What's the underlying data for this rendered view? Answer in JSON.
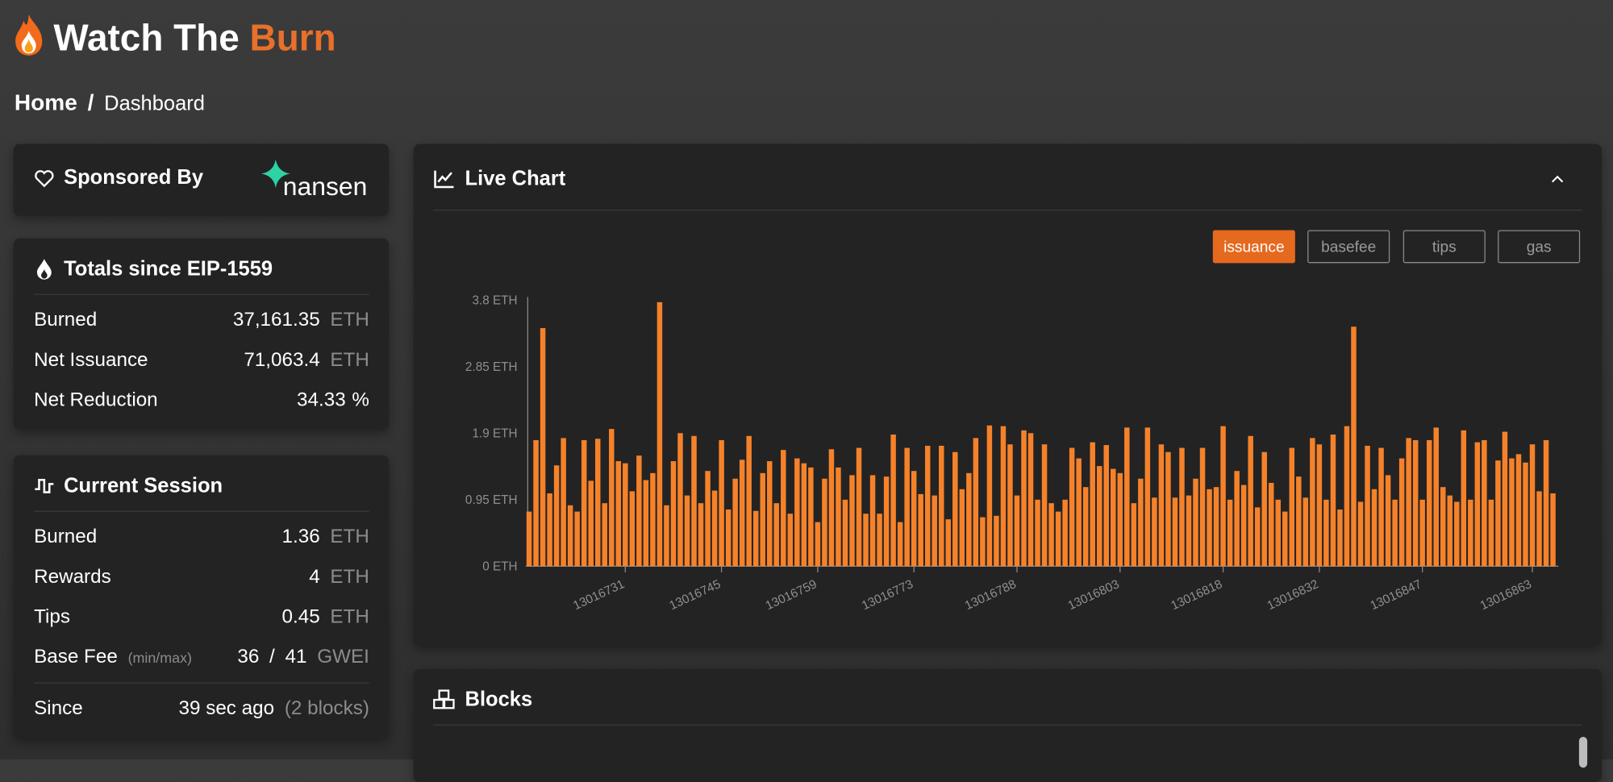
{
  "header": {
    "title": "Watch The",
    "title_accent": "Burn"
  },
  "breadcrumb": {
    "home": "Home",
    "separator": "/",
    "current": "Dashboard"
  },
  "sponsor": {
    "title": "Sponsored By",
    "logo_text": "nansen"
  },
  "totals": {
    "title": "Totals since EIP-1559",
    "rows": [
      {
        "label": "Burned",
        "value": "37,161.35",
        "unit": "ETH"
      },
      {
        "label": "Net Issuance",
        "value": "71,063.4",
        "unit": "ETH"
      },
      {
        "label": "Net Reduction",
        "value": "34.33",
        "unit": "%"
      }
    ]
  },
  "session": {
    "title": "Current Session",
    "rows": [
      {
        "label": "Burned",
        "value": "1.36",
        "unit": "ETH"
      },
      {
        "label": "Rewards",
        "value": "4",
        "unit": "ETH"
      },
      {
        "label": "Tips",
        "value": "0.45",
        "unit": "ETH"
      }
    ],
    "base_fee": {
      "label": "Base Fee",
      "note": "(min/max)",
      "min": "36",
      "separator": "/",
      "max": "41",
      "unit": "GWEI"
    },
    "since": {
      "label": "Since",
      "value": "39 sec ago",
      "note": "(2 blocks)"
    }
  },
  "live_chart": {
    "title": "Live Chart",
    "toggles": [
      "issuance",
      "basefee",
      "tips",
      "gas"
    ],
    "active": 0
  },
  "blocks": {
    "title": "Blocks"
  },
  "chart_data": {
    "type": "bar",
    "color": "#f5822a",
    "x": [
      13016717,
      13016718,
      13016719,
      13016720,
      13016721,
      13016722,
      13016723,
      13016724,
      13016725,
      13016726,
      13016727,
      13016728,
      13016729,
      13016730,
      13016731,
      13016732,
      13016733,
      13016734,
      13016735,
      13016736,
      13016737,
      13016738,
      13016739,
      13016740,
      13016741,
      13016742,
      13016743,
      13016744,
      13016745,
      13016746,
      13016747,
      13016748,
      13016749,
      13016750,
      13016751,
      13016752,
      13016753,
      13016754,
      13016755,
      13016756,
      13016757,
      13016758,
      13016759,
      13016760,
      13016761,
      13016762,
      13016763,
      13016764,
      13016765,
      13016766,
      13016767,
      13016768,
      13016769,
      13016770,
      13016771,
      13016772,
      13016773,
      13016774,
      13016775,
      13016776,
      13016777,
      13016778,
      13016779,
      13016780,
      13016781,
      13016782,
      13016783,
      13016784,
      13016785,
      13016786,
      13016787,
      13016788,
      13016789,
      13016790,
      13016791,
      13016792,
      13016793,
      13016794,
      13016795,
      13016796,
      13016797,
      13016798,
      13016799,
      13016800,
      13016801,
      13016802,
      13016803,
      13016804,
      13016805,
      13016806,
      13016807,
      13016808,
      13016809,
      13016810,
      13016811,
      13016812,
      13016813,
      13016814,
      13016815,
      13016816,
      13016817,
      13016818,
      13016819,
      13016820,
      13016821,
      13016822,
      13016823,
      13016824,
      13016825,
      13016826,
      13016827,
      13016828,
      13016829,
      13016830,
      13016831,
      13016832,
      13016833,
      13016834,
      13016835,
      13016836,
      13016837,
      13016838,
      13016839,
      13016840,
      13016841,
      13016842,
      13016843,
      13016844,
      13016845,
      13016846,
      13016847,
      13016848,
      13016849,
      13016850,
      13016851,
      13016852,
      13016853,
      13016854,
      13016855,
      13016856,
      13016857,
      13016858,
      13016859,
      13016860,
      13016861,
      13016862,
      13016863,
      13016864,
      13016865,
      13016866
    ],
    "values": [
      0.78,
      1.8,
      3.4,
      1.04,
      1.44,
      1.83,
      0.87,
      0.78,
      1.8,
      1.22,
      1.82,
      0.9,
      1.96,
      1.5,
      1.47,
      1.07,
      1.58,
      1.23,
      1.33,
      3.77,
      0.87,
      1.5,
      1.9,
      1.01,
      1.86,
      0.9,
      1.36,
      1.08,
      1.8,
      0.81,
      1.25,
      1.52,
      1.86,
      0.79,
      1.33,
      1.5,
      0.9,
      1.66,
      0.75,
      1.54,
      1.47,
      1.41,
      0.63,
      1.25,
      1.67,
      1.41,
      0.95,
      1.3,
      1.69,
      0.75,
      1.3,
      0.75,
      1.28,
      1.88,
      0.63,
      1.69,
      1.36,
      1.03,
      1.72,
      1.01,
      1.72,
      0.67,
      1.63,
      1.1,
      1.33,
      1.83,
      0.7,
      2.01,
      0.72,
      2.0,
      1.74,
      1.01,
      1.94,
      1.9,
      0.95,
      1.74,
      0.9,
      0.78,
      0.95,
      1.69,
      1.54,
      1.13,
      1.77,
      1.43,
      1.73,
      1.39,
      1.33,
      1.98,
      0.9,
      1.25,
      1.98,
      0.98,
      1.74,
      1.63,
      0.98,
      1.69,
      1.01,
      1.25,
      1.69,
      1.1,
      1.13,
      2.0,
      0.95,
      1.36,
      1.16,
      1.86,
      0.84,
      1.63,
      1.19,
      0.95,
      0.78,
      1.69,
      1.28,
      0.98,
      1.83,
      1.74,
      0.95,
      1.88,
      0.81,
      2.0,
      3.42,
      0.92,
      1.72,
      1.1,
      1.69,
      1.3,
      0.95,
      1.54,
      1.83,
      1.8,
      0.95,
      1.8,
      1.98,
      1.13,
      1.01,
      0.92,
      1.94,
      0.95,
      1.77,
      1.8,
      0.95,
      1.51,
      1.92,
      1.54,
      1.6,
      1.48,
      1.74,
      1.07,
      1.8,
      1.04
    ],
    "xlim": [
      13016716.5,
      13016866.5
    ],
    "xticks": [
      13016731,
      13016745,
      13016759,
      13016773,
      13016788,
      13016803,
      13016818,
      13016832,
      13016847,
      13016863
    ],
    "ylim": [
      0,
      3.8
    ],
    "yticks": [
      {
        "value": 0,
        "label": "0 ETH"
      },
      {
        "value": 0.95,
        "label": "0.95 ETH"
      },
      {
        "value": 1.9,
        "label": "1.9 ETH"
      },
      {
        "value": 2.85,
        "label": "2.85 ETH"
      },
      {
        "value": 3.8,
        "label": "3.8 ETH"
      }
    ]
  }
}
